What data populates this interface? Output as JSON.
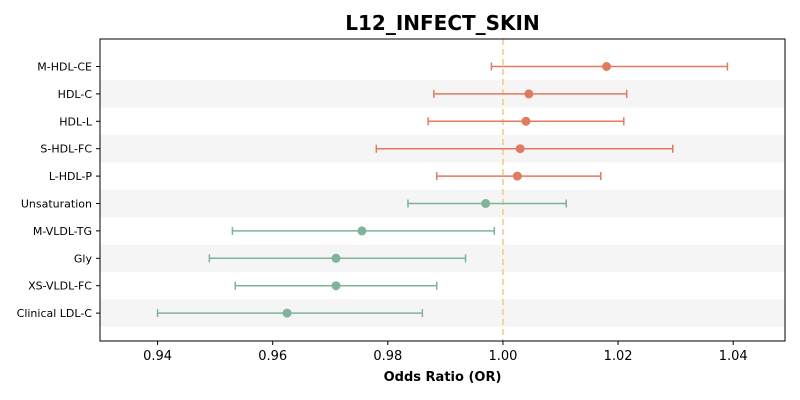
{
  "chart_data": {
    "type": "scatter",
    "subtype": "forest-plot",
    "title": "L12_INFECT_SKIN",
    "xlabel": "Odds Ratio (OR)",
    "ylabel": "",
    "xlim": [
      0.93,
      1.049
    ],
    "xticks": [
      0.94,
      0.96,
      0.98,
      1.0,
      1.02,
      1.04
    ],
    "xtick_labels": [
      "0.94",
      "0.96",
      "0.98",
      "1.00",
      "1.02",
      "1.04"
    ],
    "reference_line": 1.0,
    "grid": false,
    "alternating_row_bands": true,
    "colors": {
      "positive": "#e07b5f",
      "negative": "#7fb49b",
      "reference": "#f5c77e",
      "band": "#f5f5f5"
    },
    "items": [
      {
        "label": "M-HDL-CE",
        "or": 1.018,
        "lower": 0.998,
        "upper": 1.039,
        "direction": "positive"
      },
      {
        "label": "HDL-C",
        "or": 1.0045,
        "lower": 0.988,
        "upper": 1.0215,
        "direction": "positive"
      },
      {
        "label": "HDL-L",
        "or": 1.004,
        "lower": 0.987,
        "upper": 1.021,
        "direction": "positive"
      },
      {
        "label": "S-HDL-FC",
        "or": 1.003,
        "lower": 0.978,
        "upper": 1.0295,
        "direction": "positive"
      },
      {
        "label": "L-HDL-P",
        "or": 1.0025,
        "lower": 0.9885,
        "upper": 1.017,
        "direction": "positive"
      },
      {
        "label": "Unsaturation",
        "or": 0.997,
        "lower": 0.9835,
        "upper": 1.011,
        "direction": "negative"
      },
      {
        "label": "M-VLDL-TG",
        "or": 0.9755,
        "lower": 0.953,
        "upper": 0.9985,
        "direction": "negative"
      },
      {
        "label": "Gly",
        "or": 0.971,
        "lower": 0.949,
        "upper": 0.9935,
        "direction": "negative"
      },
      {
        "label": "XS-VLDL-FC",
        "or": 0.971,
        "lower": 0.9535,
        "upper": 0.9885,
        "direction": "negative"
      },
      {
        "label": "Clinical LDL-C",
        "or": 0.9625,
        "lower": 0.94,
        "upper": 0.986,
        "direction": "negative"
      }
    ]
  }
}
